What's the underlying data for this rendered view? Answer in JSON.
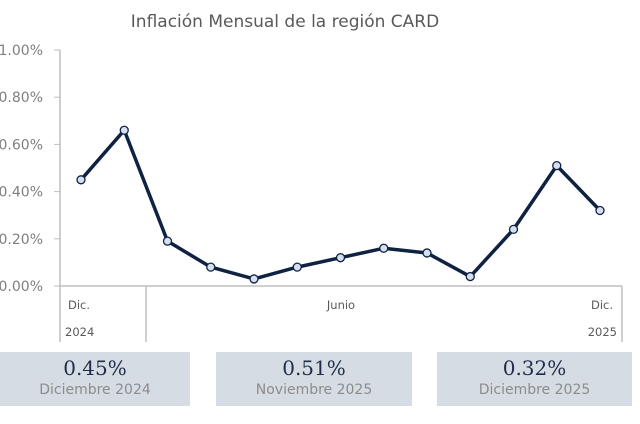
{
  "chart_data": {
    "type": "line",
    "title": "Inflación Mensual de la región CARD",
    "xlabel": "",
    "ylabel": "",
    "ylim": [
      0,
      1.0
    ],
    "yticks": [
      "0.00%",
      "0.20%",
      "0.40%",
      "0.60%",
      "0.80%",
      "1.00%"
    ],
    "ytick_values": [
      0,
      0.2,
      0.4,
      0.6,
      0.8,
      1.0
    ],
    "x_labels": {
      "first": "Dic.",
      "middle": "Junio",
      "last": "Dic."
    },
    "year_labels": {
      "first": "2024",
      "last": "2025"
    },
    "series": [
      {
        "name": "Inflación mensual",
        "color": "#0f2241",
        "values": [
          0.45,
          0.66,
          0.19,
          0.08,
          0.03,
          0.08,
          0.12,
          0.16,
          0.14,
          0.04,
          0.24,
          0.51,
          0.32
        ]
      }
    ],
    "grid": false
  },
  "cards": [
    {
      "value": "0.45%",
      "label": "Diciembre 2024"
    },
    {
      "value": "0.51%",
      "label": "Noviembre 2025"
    },
    {
      "value": "0.32%",
      "label": "Diciembre 2025"
    }
  ]
}
